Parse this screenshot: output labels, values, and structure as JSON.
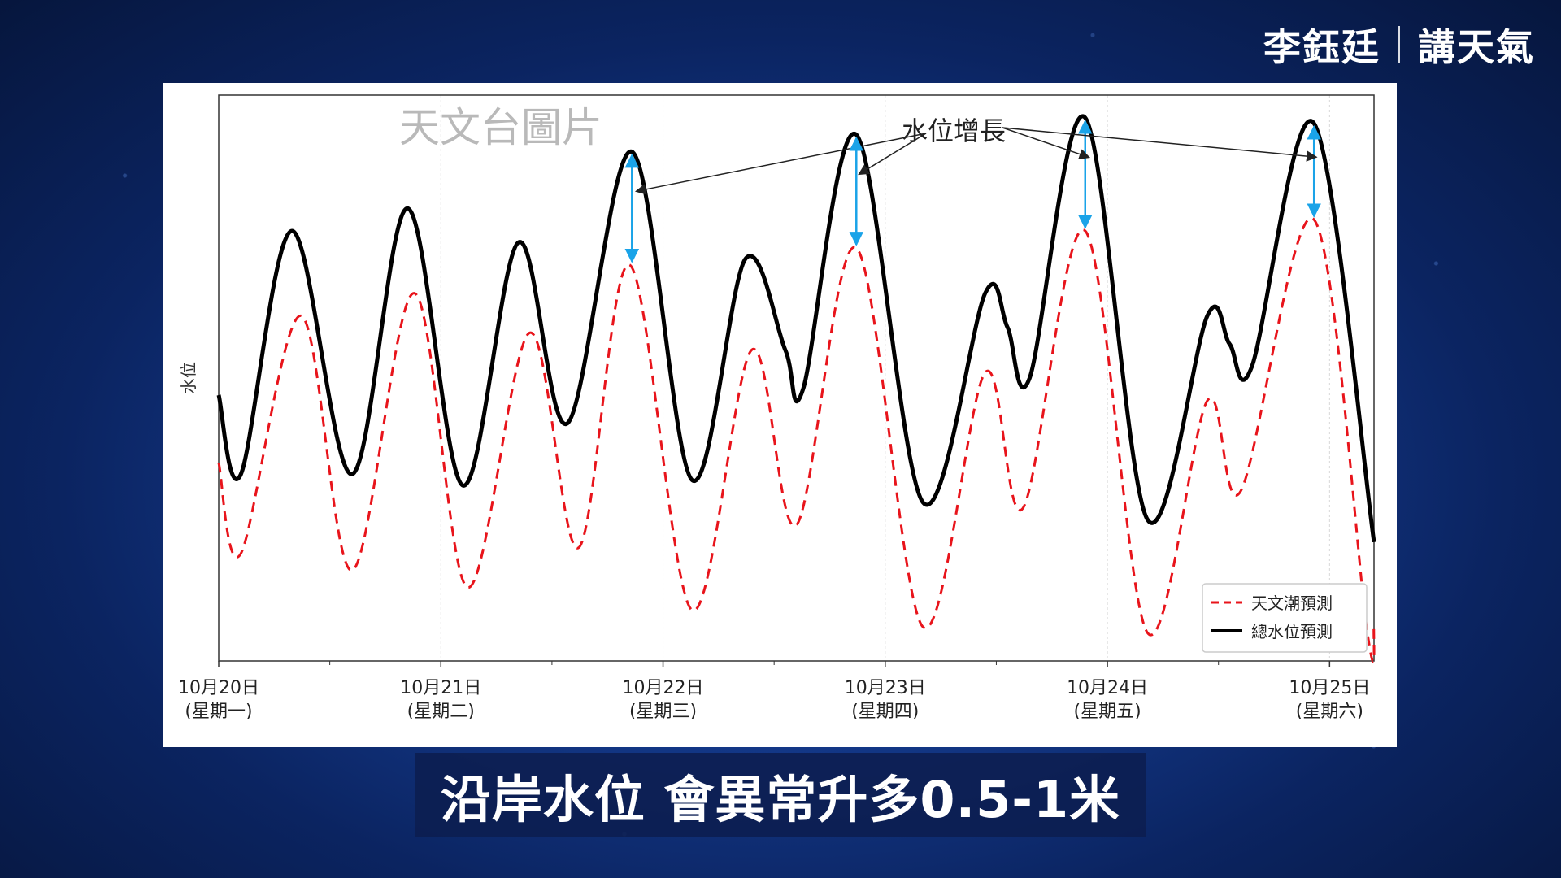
{
  "brand": {
    "name": "李鈺廷",
    "channel": "講天氣"
  },
  "subtitle": "沿岸水位 會異常升多0.5-1米",
  "watermark": "天文台圖片",
  "annotation": "水位增長",
  "colors": {
    "astronomical": "#e8141b",
    "total": "#000000",
    "arrow": "#1aa3e8"
  },
  "chart_data": {
    "type": "line",
    "title": "",
    "xlabel": "",
    "ylabel": "水位",
    "x_unit": "days since 10月20日",
    "xlim": [
      0,
      5.2
    ],
    "ylim": [
      0,
      1
    ],
    "grid": true,
    "legend_position": "bottom-right",
    "categories": [
      "10月20日",
      "10月21日",
      "10月22日",
      "10月23日",
      "10月24日",
      "10月25日"
    ],
    "category_sub": [
      "(星期一)",
      "(星期二)",
      "(星期三)",
      "(星期四)",
      "(星期五)",
      "(星期六)"
    ],
    "series": [
      {
        "name": "天文潮預測",
        "style": "dashed",
        "points": [
          [
            0.0,
            0.35
          ],
          [
            0.1,
            0.19
          ],
          [
            0.37,
            0.61
          ],
          [
            0.6,
            0.16
          ],
          [
            0.88,
            0.65
          ],
          [
            1.12,
            0.13
          ],
          [
            1.4,
            0.58
          ],
          [
            1.62,
            0.2
          ],
          [
            1.85,
            0.7
          ],
          [
            2.13,
            0.09
          ],
          [
            2.4,
            0.55
          ],
          [
            2.6,
            0.24
          ],
          [
            2.87,
            0.73
          ],
          [
            3.17,
            0.06
          ],
          [
            3.45,
            0.51
          ],
          [
            3.62,
            0.27
          ],
          [
            3.9,
            0.76
          ],
          [
            4.18,
            0.05
          ],
          [
            4.45,
            0.46
          ],
          [
            4.6,
            0.3
          ],
          [
            4.93,
            0.78
          ],
          [
            5.17,
            0.05
          ],
          [
            5.2,
            0.06
          ]
        ]
      },
      {
        "name": "總水位預測",
        "style": "solid",
        "points": [
          [
            0.0,
            0.47
          ],
          [
            0.1,
            0.33
          ],
          [
            0.33,
            0.76
          ],
          [
            0.6,
            0.33
          ],
          [
            0.85,
            0.8
          ],
          [
            1.1,
            0.31
          ],
          [
            1.35,
            0.74
          ],
          [
            1.57,
            0.42
          ],
          [
            1.86,
            0.9
          ],
          [
            2.13,
            0.32
          ],
          [
            2.37,
            0.71
          ],
          [
            2.55,
            0.55
          ],
          [
            2.63,
            0.48
          ],
          [
            2.87,
            0.93
          ],
          [
            3.17,
            0.28
          ],
          [
            3.45,
            0.65
          ],
          [
            3.55,
            0.59
          ],
          [
            3.65,
            0.5
          ],
          [
            3.9,
            0.96
          ],
          [
            4.18,
            0.25
          ],
          [
            4.45,
            0.61
          ],
          [
            4.55,
            0.56
          ],
          [
            4.65,
            0.52
          ],
          [
            4.93,
            0.95
          ],
          [
            5.2,
            0.21
          ]
        ]
      }
    ],
    "arrows": [
      {
        "x": 1.86,
        "from": 0.7,
        "to": 0.9
      },
      {
        "x": 2.87,
        "from": 0.73,
        "to": 0.93
      },
      {
        "x": 3.9,
        "from": 0.76,
        "to": 0.96
      },
      {
        "x": 4.93,
        "from": 0.78,
        "to": 0.95
      }
    ]
  }
}
